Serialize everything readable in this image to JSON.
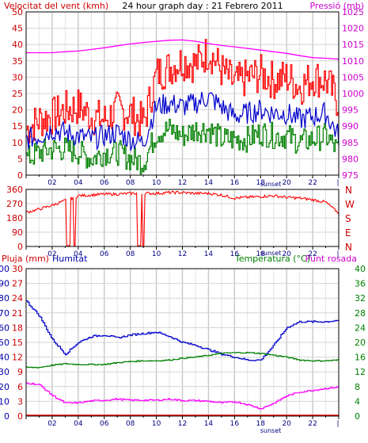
{
  "header": {
    "title": "24 hour graph day : 21 Febrero 2011",
    "left_label": "Velocitat del vent (kmh)",
    "right_label": "Pressió (mb)"
  },
  "panel2": {
    "right_labels": [
      "N",
      "W",
      "S",
      "E",
      "N"
    ]
  },
  "panel3": {
    "label_rain": "Pluja (mm)",
    "label_humidity": "Humitat",
    "label_temp": "Temperatura (°C)",
    "label_dew": "Punt rosada"
  },
  "x_axis": {
    "ticks": [
      "02",
      "04",
      "06",
      "08",
      "10",
      "12",
      "14",
      "16",
      "18",
      "20",
      "22"
    ],
    "sunset_label": "sunset"
  },
  "colors": {
    "wind_gust": "#ff0000",
    "wind_avg": "#0000cc",
    "wind_min": "#008000",
    "pressure": "#ff00ff",
    "direction": "#ff0000",
    "humidity": "#0000cc",
    "temperature": "#008000",
    "dew_point": "#ff00ff",
    "rain": "#ff0000"
  },
  "chart_data": [
    {
      "type": "line",
      "x": [
        "00:00",
        "01:00",
        "02:00",
        "03:00",
        "04:00",
        "05:00",
        "06:00",
        "07:00",
        "08:00",
        "09:00",
        "10:00",
        "11:00",
        "12:00",
        "13:00",
        "14:00",
        "15:00",
        "16:00",
        "17:00",
        "18:00",
        "19:00",
        "20:00",
        "21:00",
        "22:00",
        "23:00",
        "24:00"
      ],
      "x_ticks": [
        "02",
        "04",
        "06",
        "08",
        "10",
        "12",
        "14",
        "16",
        "18",
        "20",
        "22"
      ],
      "y_left": {
        "label": "Velocitat del vent (kmh)",
        "ticks": [
          0,
          5,
          10,
          15,
          20,
          25,
          30,
          35,
          40,
          45,
          50
        ],
        "range": [
          0,
          50
        ]
      },
      "y_right": {
        "label": "Pressió (mb)",
        "ticks": [
          975,
          980,
          985,
          990,
          995,
          1000,
          1005,
          1010,
          1015,
          1020,
          1025
        ],
        "range": [
          975,
          1025
        ]
      },
      "series": [
        {
          "axis": "left",
          "values": [
            14,
            17,
            18,
            20,
            21,
            18,
            17,
            20,
            19,
            16,
            31,
            33,
            35,
            34,
            38,
            32,
            28,
            30,
            31,
            29,
            30,
            27,
            30,
            29,
            22
          ]
        },
        {
          "axis": "left",
          "values": [
            11,
            12,
            14,
            13,
            12,
            11,
            12,
            13,
            11,
            10,
            21,
            22,
            21,
            22,
            24,
            21,
            18,
            19,
            20,
            19,
            19,
            17,
            18,
            19,
            12
          ]
        },
        {
          "axis": "left",
          "values": [
            5,
            7,
            8,
            8,
            7,
            5,
            7,
            7,
            5,
            4,
            13,
            14,
            12,
            14,
            14,
            11,
            11,
            11,
            13,
            12,
            12,
            10,
            11,
            12,
            7
          ]
        },
        {
          "axis": "right",
          "values": [
            1012.5,
            1012.5,
            1012.5,
            1012.8,
            1013,
            1013.5,
            1014,
            1014.6,
            1015.2,
            1015.6,
            1016,
            1016.3,
            1016.4,
            1016,
            1015.3,
            1014.7,
            1014.3,
            1013.8,
            1013.3,
            1012.8,
            1012.3,
            1011.6,
            1011,
            1010.8,
            1010.5
          ]
        }
      ]
    },
    {
      "type": "line",
      "x": [
        "00:00",
        "01:00",
        "02:00",
        "03:00",
        "04:00",
        "05:00",
        "06:00",
        "07:00",
        "08:00",
        "09:00",
        "10:00",
        "11:00",
        "12:00",
        "13:00",
        "14:00",
        "15:00",
        "16:00",
        "17:00",
        "18:00",
        "19:00",
        "20:00",
        "21:00",
        "22:00",
        "23:00",
        "24:00"
      ],
      "x_ticks": [
        "02",
        "04",
        "06",
        "08",
        "10",
        "12",
        "14",
        "16",
        "18",
        "20",
        "22"
      ],
      "y_left": {
        "ticks": [
          0,
          90,
          180,
          270,
          360
        ],
        "range": [
          0,
          360
        ]
      },
      "y_right": {
        "ticks": [
          "N",
          "W",
          "S",
          "E",
          "N"
        ]
      },
      "series": [
        {
          "axis": "left",
          "values": [
            215,
            235,
            260,
            290,
            320,
            325,
            330,
            330,
            335,
            335,
            335,
            340,
            340,
            335,
            335,
            325,
            305,
            310,
            315,
            320,
            310,
            305,
            295,
            280,
            210
          ]
        }
      ]
    },
    {
      "type": "line",
      "x": [
        "00:00",
        "01:00",
        "02:00",
        "03:00",
        "04:00",
        "05:00",
        "06:00",
        "07:00",
        "08:00",
        "09:00",
        "10:00",
        "11:00",
        "12:00",
        "13:00",
        "14:00",
        "15:00",
        "16:00",
        "17:00",
        "18:00",
        "19:00",
        "20:00",
        "21:00",
        "22:00",
        "23:00",
        "24:00"
      ],
      "x_ticks": [
        "02",
        "04",
        "06",
        "08",
        "10",
        "12",
        "14",
        "16",
        "18",
        "20",
        "22"
      ],
      "y_left_outer": {
        "label": "Pluja (mm)",
        "ticks": [
          0,
          3,
          6,
          9,
          12,
          15,
          18,
          21,
          24,
          27,
          30
        ],
        "range": [
          0,
          30
        ]
      },
      "y_left_inner": {
        "label": "Humitat",
        "ticks": [
          0,
          10,
          20,
          30,
          40,
          50,
          60,
          70,
          80,
          90,
          100
        ],
        "range": [
          0,
          100
        ]
      },
      "y_right": {
        "label": "Temperatura (°C)",
        "ticks": [
          0,
          4,
          8,
          12,
          16,
          20,
          24,
          28,
          32,
          36,
          40
        ],
        "range": [
          0,
          40
        ]
      },
      "series": [
        {
          "axis": "left_inner",
          "values": [
            78,
            68,
            52,
            42,
            50,
            54,
            55,
            53,
            55,
            56,
            57,
            54,
            50,
            48,
            45,
            42,
            40,
            38,
            38,
            48,
            60,
            64,
            64,
            64,
            65
          ]
        },
        {
          "axis": "right",
          "values": [
            13.2,
            13.2,
            13.8,
            14.2,
            14,
            14,
            14,
            14.5,
            14.8,
            15,
            15,
            15.2,
            15.7,
            16,
            16.5,
            17,
            17.2,
            17.2,
            17,
            16.5,
            16,
            15.2,
            15,
            15,
            15.2
          ]
        },
        {
          "axis": "right",
          "values": [
            9,
            8.5,
            5.6,
            3.5,
            3.6,
            4.1,
            4.3,
            4.6,
            4.3,
            4.3,
            4.3,
            4.6,
            4.2,
            4.2,
            4,
            3.6,
            3.9,
            3.1,
            2,
            3.5,
            5.5,
            6.5,
            7,
            7.5,
            7.9
          ]
        },
        {
          "axis": "left_outer",
          "values": [
            0,
            0,
            0,
            0,
            0,
            0,
            0,
            0,
            0,
            0,
            0,
            0,
            0,
            0,
            0,
            0,
            0,
            0,
            0,
            0,
            0,
            0,
            0,
            0,
            0
          ]
        }
      ]
    }
  ]
}
